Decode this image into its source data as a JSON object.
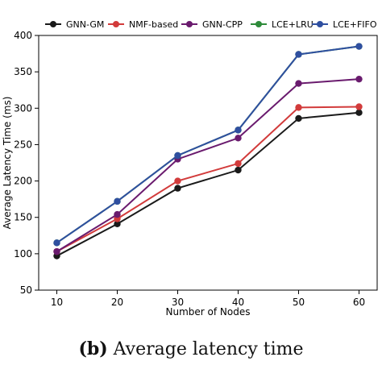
{
  "caption": {
    "prefix": "(b)",
    "text": "Average latency time"
  },
  "chart_data": {
    "type": "line",
    "xlabel": "Number of Nodes",
    "ylabel": "Average Latency Time (ms)",
    "x": [
      10,
      20,
      30,
      40,
      50,
      60
    ],
    "xlim": [
      7,
      63
    ],
    "ylim": [
      50,
      400
    ],
    "xticks": [
      10,
      20,
      30,
      40,
      50,
      60
    ],
    "yticks": [
      50,
      100,
      150,
      200,
      250,
      300,
      350,
      400
    ],
    "grid": false,
    "legend_position": "top",
    "series": [
      {
        "name": "GNN-GM",
        "color": "#1a1a1a",
        "values": [
          97,
          141,
          190,
          215,
          286,
          294
        ]
      },
      {
        "name": "NMF-based",
        "color": "#d23b3b",
        "values": [
          103,
          148,
          200,
          224,
          301,
          302
        ]
      },
      {
        "name": "GNN-CPP",
        "color": "#6a1b6e",
        "values": [
          103,
          154,
          230,
          259,
          334,
          340
        ]
      },
      {
        "name": "LCE+LRU",
        "color": "#2e8b3a",
        "values": [
          115,
          172,
          235,
          270,
          374,
          385
        ]
      },
      {
        "name": "LCE+FIFO",
        "color": "#2f4fa0",
        "values": [
          115,
          172,
          235,
          270,
          374,
          385
        ]
      }
    ]
  }
}
